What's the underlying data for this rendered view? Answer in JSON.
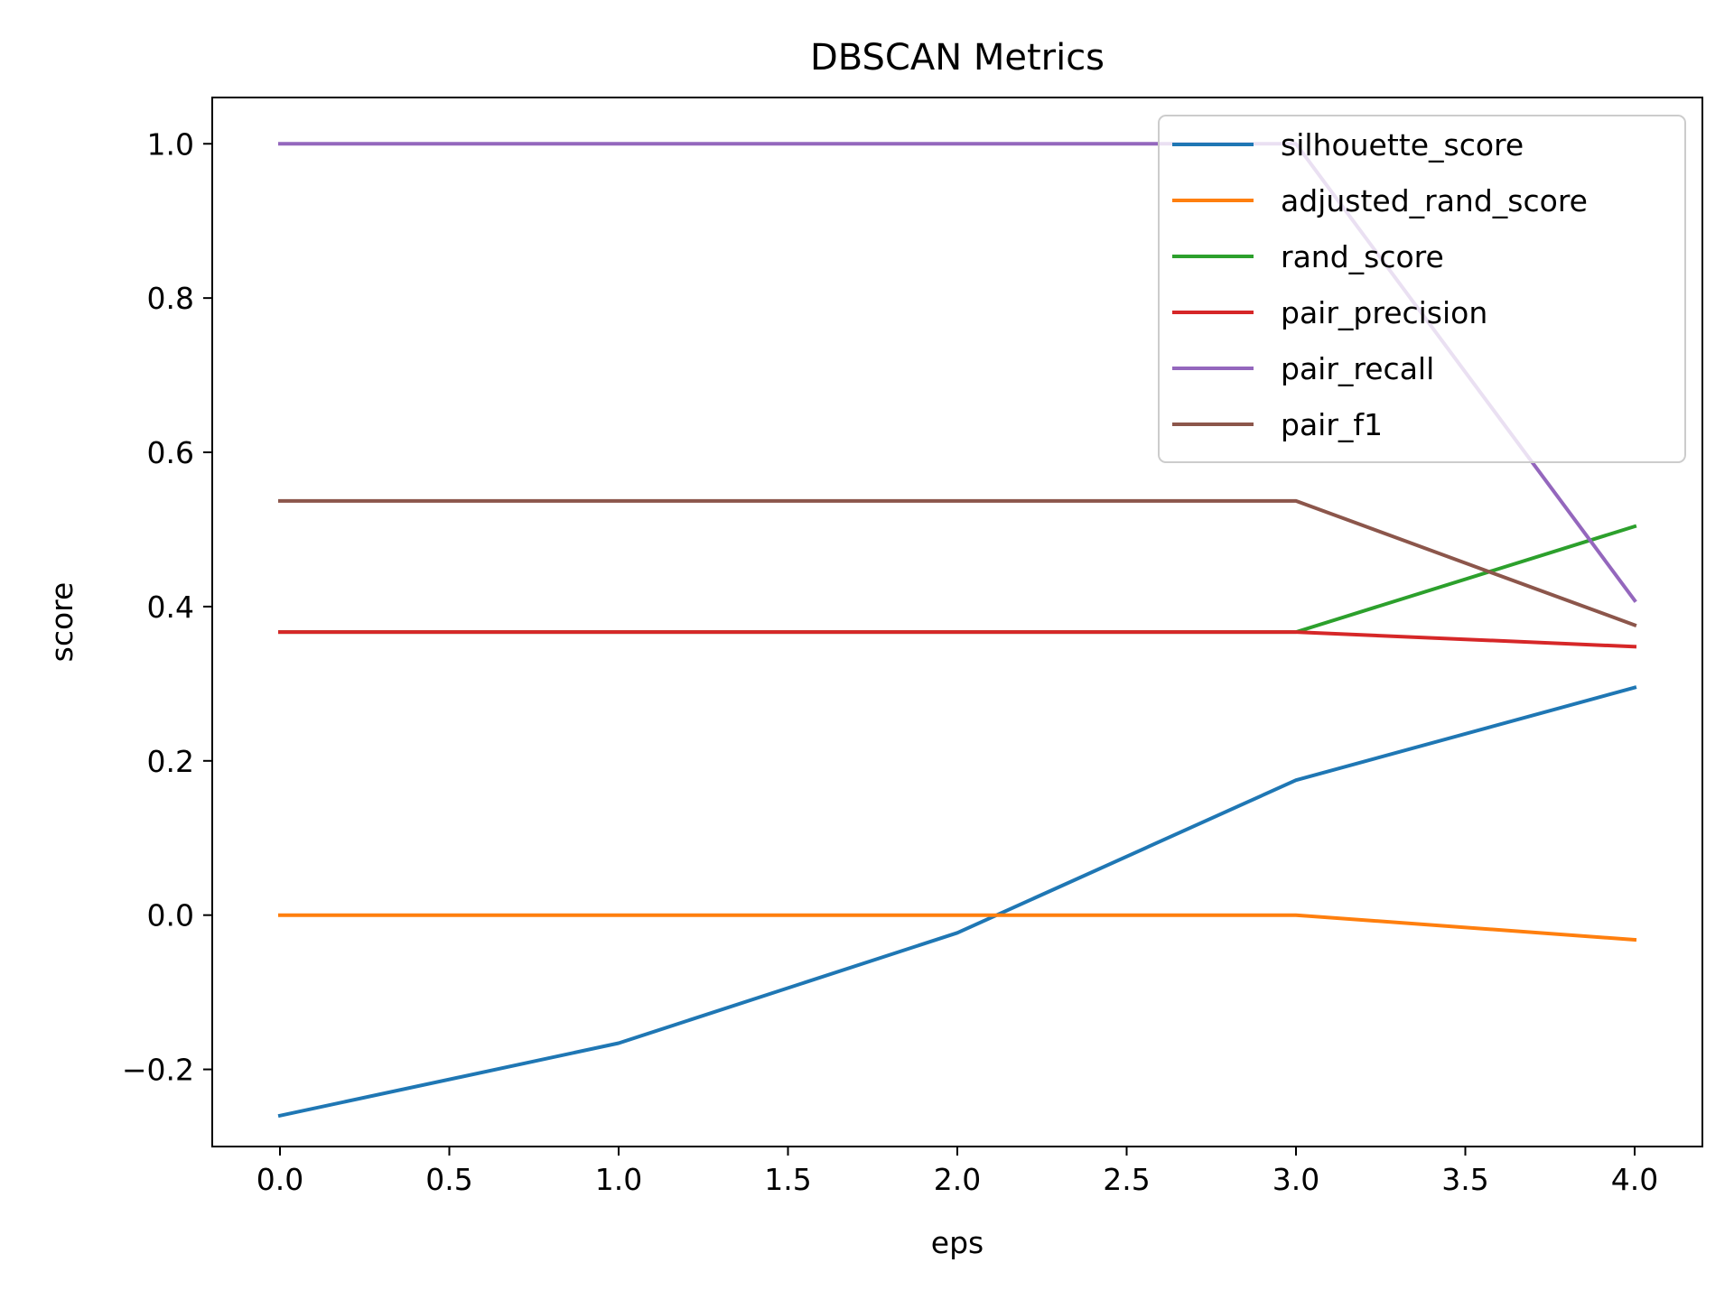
{
  "chart_data": {
    "type": "line",
    "title": "DBSCAN Metrics",
    "xlabel": "eps",
    "ylabel": "score",
    "x": [
      0,
      1,
      2,
      3,
      4
    ],
    "xlim": [
      -0.2,
      4.2
    ],
    "ylim": [
      -0.3,
      1.06
    ],
    "xticks": [
      0.0,
      0.5,
      1.0,
      1.5,
      2.0,
      2.5,
      3.0,
      3.5,
      4.0
    ],
    "xtick_labels": [
      "0.0",
      "0.5",
      "1.0",
      "1.5",
      "2.0",
      "2.5",
      "3.0",
      "3.5",
      "4.0"
    ],
    "yticks": [
      -0.2,
      0.0,
      0.2,
      0.4,
      0.6,
      0.8,
      1.0
    ],
    "ytick_labels": [
      "−0.2",
      "0.0",
      "0.2",
      "0.4",
      "0.6",
      "0.8",
      "1.0"
    ],
    "legend_position": "top-right",
    "grid": false,
    "series": [
      {
        "name": "silhouette_score",
        "color": "#1f77b4",
        "values": [
          -0.26,
          -0.166,
          -0.023,
          0.175,
          0.295
        ]
      },
      {
        "name": "adjusted_rand_score",
        "color": "#ff7f0e",
        "values": [
          0.0,
          0.0,
          0.0,
          0.0,
          -0.032
        ]
      },
      {
        "name": "rand_score",
        "color": "#2ca02c",
        "values": [
          0.367,
          0.367,
          0.367,
          0.367,
          0.504
        ]
      },
      {
        "name": "pair_precision",
        "color": "#d62728",
        "values": [
          0.367,
          0.367,
          0.367,
          0.367,
          0.348
        ]
      },
      {
        "name": "pair_recall",
        "color": "#9467bd",
        "values": [
          1.0,
          1.0,
          1.0,
          1.0,
          0.408
        ]
      },
      {
        "name": "pair_f1",
        "color": "#8c564b",
        "values": [
          0.537,
          0.537,
          0.537,
          0.537,
          0.376
        ]
      }
    ]
  }
}
